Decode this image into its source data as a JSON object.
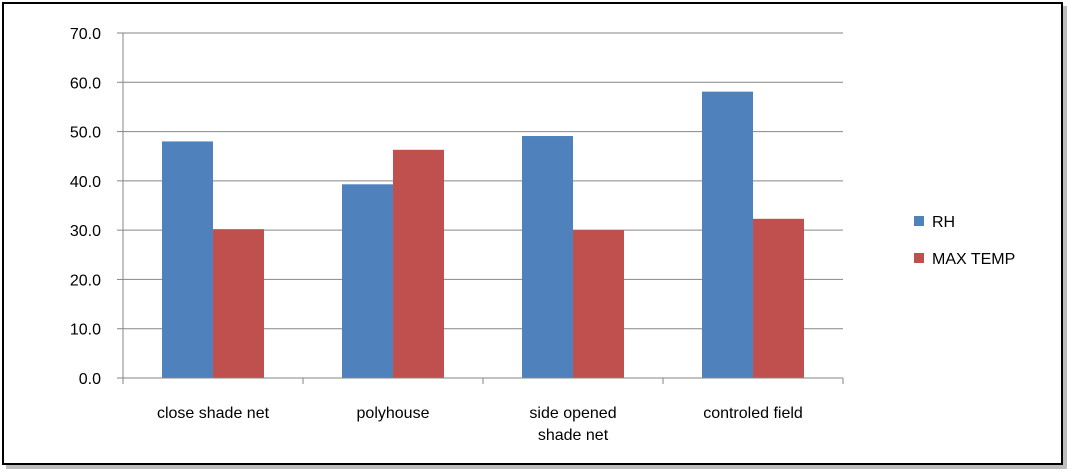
{
  "chart_data": {
    "type": "bar",
    "categories": [
      [
        "close shade net"
      ],
      [
        "polyhouse"
      ],
      [
        "side opened",
        "shade net"
      ],
      [
        "controled field"
      ]
    ],
    "series": [
      {
        "name": "RH",
        "values": [
          48.0,
          39.3,
          49.1,
          58.1
        ],
        "color": "#4F81BD"
      },
      {
        "name": "MAX TEMP",
        "values": [
          30.2,
          46.3,
          30.0,
          32.3
        ],
        "color": "#C0504D"
      }
    ],
    "yticks": [
      "0.0",
      "10.0",
      "20.0",
      "30.0",
      "40.0",
      "50.0",
      "60.0",
      "70.0"
    ],
    "ylim": [
      0,
      70
    ],
    "grid": true,
    "legend_position": "right"
  }
}
